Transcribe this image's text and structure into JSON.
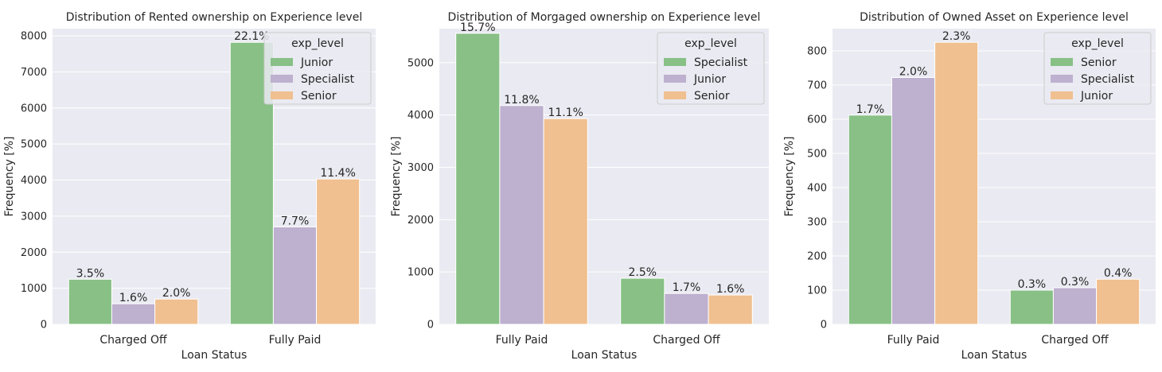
{
  "colors": {
    "plot_background": "#eaeaf2",
    "grid": "#ffffff",
    "text": "#262626",
    "palette": [
      "#88c086",
      "#beb0cf",
      "#f0c090"
    ]
  },
  "chart_data": [
    {
      "type": "bar",
      "title": "Distribution of Rented ownership on Experience level",
      "xlabel": "Loan Status",
      "ylabel": "Frequency [%]",
      "categories": [
        "Charged Off",
        "Fully Paid"
      ],
      "ylim": [
        0,
        8200
      ],
      "yticks": [
        0,
        1000,
        2000,
        3000,
        4000,
        5000,
        6000,
        7000,
        8000
      ],
      "grid": true,
      "legend": {
        "title": "exp_level",
        "position": "top-right"
      },
      "series": [
        {
          "name": "Junior",
          "values": [
            1250,
            7820
          ],
          "labels": [
            "3.5%",
            "22.1%"
          ]
        },
        {
          "name": "Specialist",
          "values": [
            570,
            2700
          ],
          "labels": [
            "1.6%",
            "7.7%"
          ]
        },
        {
          "name": "Senior",
          "values": [
            700,
            4030
          ],
          "labels": [
            "2.0%",
            "11.4%"
          ]
        }
      ]
    },
    {
      "type": "bar",
      "title": "Distribution of Morgaged ownership on Experience level",
      "xlabel": "Loan Status",
      "ylabel": "Frequency [%]",
      "categories": [
        "Fully Paid",
        "Charged Off"
      ],
      "ylim": [
        0,
        5650
      ],
      "yticks": [
        0,
        1000,
        2000,
        3000,
        4000,
        5000
      ],
      "grid": true,
      "legend": {
        "title": "exp_level",
        "position": "top-right"
      },
      "series": [
        {
          "name": "Specialist",
          "values": [
            5560,
            880
          ],
          "labels": [
            "15.7%",
            "2.5%"
          ]
        },
        {
          "name": "Junior",
          "values": [
            4180,
            590
          ],
          "labels": [
            "11.8%",
            "1.7%"
          ]
        },
        {
          "name": "Senior",
          "values": [
            3930,
            560
          ],
          "labels": [
            "11.1%",
            "1.6%"
          ]
        }
      ]
    },
    {
      "type": "bar",
      "title": "Distribution of Owned Asset on Experience level",
      "xlabel": "Loan Status",
      "ylabel": "Frequency [%]",
      "categories": [
        "Fully Paid",
        "Charged Off"
      ],
      "ylim": [
        0,
        865
      ],
      "yticks": [
        0,
        100,
        200,
        300,
        400,
        500,
        600,
        700,
        800
      ],
      "grid": true,
      "legend": {
        "title": "exp_level",
        "position": "top-right"
      },
      "series": [
        {
          "name": "Senior",
          "values": [
            612,
            100
          ],
          "labels": [
            "1.7%",
            "0.3%"
          ]
        },
        {
          "name": "Specialist",
          "values": [
            722,
            107
          ],
          "labels": [
            "2.0%",
            "0.3%"
          ]
        },
        {
          "name": "Junior",
          "values": [
            825,
            132
          ],
          "labels": [
            "2.3%",
            "0.4%"
          ]
        }
      ]
    }
  ]
}
